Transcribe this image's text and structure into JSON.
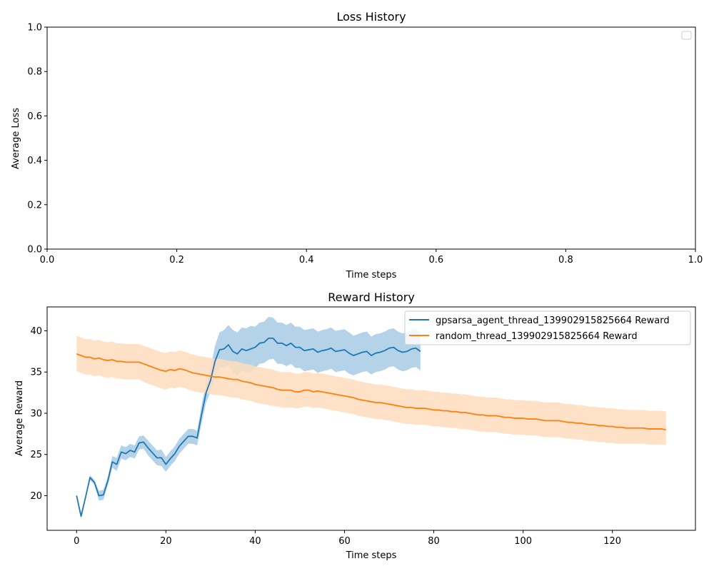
{
  "chart_data": [
    {
      "type": "line",
      "title": "Loss History",
      "xlabel": "Time steps",
      "ylabel": "Average Loss",
      "xlim": [
        0,
        1
      ],
      "ylim": [
        0,
        1
      ],
      "xticks": [
        "0.0",
        "0.2",
        "0.4",
        "0.6",
        "0.8",
        "1.0"
      ],
      "yticks": [
        "0.0",
        "0.2",
        "0.4",
        "0.6",
        "0.8",
        "1.0"
      ],
      "series": [],
      "legend": "upper-right (empty)",
      "grid": false
    },
    {
      "type": "line",
      "title": "Reward History",
      "xlabel": "Time steps",
      "ylabel": "Average Reward",
      "xlim": [
        -6.6,
        138.6
      ],
      "ylim": [
        15.8,
        42.9
      ],
      "xticks": [
        "0",
        "20",
        "40",
        "60",
        "80",
        "100",
        "120"
      ],
      "yticks": [
        "20",
        "25",
        "30",
        "35",
        "40"
      ],
      "legend": "upper-right",
      "grid": false,
      "series": [
        {
          "name": "gpsarsa_agent_thread_139902915825664 Reward",
          "color": "#1f77b4",
          "band_color": "#a8cbe4",
          "x": [
            0,
            1,
            2,
            3,
            4,
            5,
            6,
            7,
            8,
            9,
            10,
            11,
            12,
            13,
            14,
            15,
            16,
            17,
            18,
            19,
            20,
            21,
            22,
            23,
            24,
            25,
            26,
            27,
            28,
            29,
            30,
            31,
            32,
            33,
            34,
            35,
            36,
            37,
            38,
            39,
            40,
            41,
            42,
            43,
            44,
            45,
            46,
            47,
            48,
            49,
            50,
            51,
            52,
            53,
            54,
            55,
            56,
            57,
            58,
            59,
            60,
            61,
            62,
            63,
            64,
            65,
            66,
            67,
            68,
            69,
            70,
            71,
            72,
            73,
            74,
            75,
            76,
            77
          ],
          "y": [
            20.0,
            17.5,
            19.8,
            22.2,
            21.6,
            20.0,
            20.1,
            21.8,
            24.1,
            23.8,
            25.3,
            25.1,
            25.5,
            25.3,
            26.4,
            26.5,
            25.8,
            25.2,
            24.6,
            24.6,
            23.8,
            24.5,
            25.1,
            26.0,
            26.6,
            27.2,
            27.2,
            27.0,
            29.9,
            32.5,
            34.0,
            36.3,
            37.7,
            37.8,
            38.3,
            37.5,
            37.2,
            37.8,
            37.6,
            37.8,
            38.0,
            38.5,
            38.6,
            39.1,
            39.1,
            38.5,
            38.5,
            38.2,
            38.5,
            38.0,
            38.0,
            37.6,
            37.7,
            37.8,
            37.4,
            37.6,
            37.7,
            37.9,
            37.5,
            37.6,
            37.7,
            37.3,
            37.0,
            37.2,
            37.4,
            37.5,
            37.0,
            37.3,
            37.4,
            37.6,
            37.9,
            38.0,
            37.6,
            37.4,
            37.5,
            37.8,
            37.9,
            37.5
          ],
          "lower": [
            19.8,
            17.3,
            19.6,
            21.9,
            21.3,
            19.4,
            19.5,
            21.3,
            23.4,
            23.0,
            24.5,
            24.3,
            24.7,
            24.5,
            25.6,
            25.7,
            24.9,
            24.3,
            23.7,
            23.6,
            22.9,
            23.6,
            24.2,
            25.1,
            25.7,
            26.3,
            26.3,
            26.1,
            28.8,
            31.3,
            32.6,
            34.4,
            35.6,
            35.5,
            35.9,
            34.9,
            34.6,
            35.2,
            34.9,
            35.0,
            35.5,
            36.0,
            36.1,
            36.5,
            36.6,
            36.0,
            36.0,
            35.7,
            36.0,
            35.5,
            35.5,
            35.1,
            35.2,
            35.3,
            34.9,
            35.1,
            35.2,
            35.4,
            35.0,
            35.1,
            35.2,
            34.8,
            34.6,
            34.8,
            35.0,
            35.1,
            34.7,
            35.0,
            35.1,
            35.3,
            35.6,
            35.7,
            35.3,
            35.1,
            35.2,
            35.5,
            35.6,
            35.2
          ],
          "upper": [
            20.2,
            17.7,
            20.0,
            22.5,
            21.9,
            20.6,
            20.7,
            22.3,
            24.8,
            24.6,
            26.1,
            25.9,
            26.3,
            26.1,
            27.2,
            27.3,
            26.7,
            26.1,
            25.5,
            25.6,
            24.7,
            25.4,
            26.0,
            26.9,
            27.5,
            28.1,
            28.1,
            27.9,
            31.0,
            33.7,
            35.4,
            38.2,
            39.8,
            40.1,
            40.7,
            40.1,
            39.8,
            40.4,
            40.3,
            40.6,
            40.5,
            41.0,
            41.1,
            41.7,
            41.6,
            41.0,
            41.0,
            40.7,
            41.0,
            40.5,
            40.5,
            40.1,
            40.2,
            40.3,
            39.9,
            40.1,
            40.2,
            40.4,
            40.0,
            40.1,
            40.2,
            39.8,
            39.4,
            39.6,
            39.8,
            39.9,
            39.3,
            39.6,
            39.7,
            39.9,
            40.2,
            40.3,
            39.9,
            39.7,
            39.8,
            40.1,
            40.2,
            39.8
          ]
        },
        {
          "name": "random_thread_139902915825664 Reward",
          "color": "#ff7f0e",
          "band_color": "#ffdcbd",
          "x": [
            0,
            1,
            2,
            3,
            4,
            5,
            6,
            7,
            8,
            9,
            10,
            11,
            12,
            13,
            14,
            15,
            16,
            17,
            18,
            19,
            20,
            21,
            22,
            23,
            24,
            25,
            26,
            27,
            28,
            29,
            30,
            31,
            32,
            33,
            34,
            35,
            36,
            37,
            38,
            39,
            40,
            41,
            42,
            43,
            44,
            45,
            46,
            47,
            48,
            49,
            50,
            51,
            52,
            53,
            54,
            55,
            56,
            57,
            58,
            59,
            60,
            61,
            62,
            63,
            64,
            65,
            66,
            67,
            68,
            69,
            70,
            71,
            72,
            73,
            74,
            75,
            76,
            77,
            78,
            79,
            80,
            81,
            82,
            83,
            84,
            85,
            86,
            87,
            88,
            89,
            90,
            91,
            92,
            93,
            94,
            95,
            96,
            97,
            98,
            99,
            100,
            101,
            102,
            103,
            104,
            105,
            106,
            107,
            108,
            109,
            110,
            111,
            112,
            113,
            114,
            115,
            116,
            117,
            118,
            119,
            120,
            121,
            122,
            123,
            124,
            125,
            126,
            127,
            128,
            129,
            130,
            131,
            132
          ],
          "y": [
            37.2,
            37.0,
            36.8,
            36.8,
            36.6,
            36.7,
            36.5,
            36.4,
            36.5,
            36.3,
            36.3,
            36.2,
            36.2,
            36.2,
            36.2,
            36.0,
            35.8,
            35.6,
            35.4,
            35.2,
            35.1,
            35.3,
            35.2,
            35.4,
            35.3,
            35.1,
            34.9,
            34.8,
            34.7,
            34.6,
            34.5,
            34.4,
            34.4,
            34.3,
            34.2,
            34.1,
            34.1,
            33.9,
            33.8,
            33.7,
            33.5,
            33.4,
            33.3,
            33.2,
            33.1,
            32.9,
            32.8,
            32.8,
            32.8,
            32.6,
            32.6,
            32.8,
            32.8,
            32.6,
            32.7,
            32.6,
            32.5,
            32.4,
            32.3,
            32.2,
            32.1,
            32.0,
            31.9,
            31.7,
            31.6,
            31.5,
            31.4,
            31.3,
            31.3,
            31.2,
            31.1,
            31.0,
            30.9,
            30.8,
            30.7,
            30.7,
            30.6,
            30.6,
            30.6,
            30.5,
            30.4,
            30.4,
            30.3,
            30.3,
            30.2,
            30.2,
            30.1,
            30.1,
            30.0,
            29.9,
            29.8,
            29.8,
            29.7,
            29.7,
            29.7,
            29.6,
            29.5,
            29.5,
            29.4,
            29.4,
            29.4,
            29.3,
            29.3,
            29.3,
            29.2,
            29.1,
            29.1,
            29.1,
            29.1,
            29.0,
            28.9,
            28.9,
            28.8,
            28.8,
            28.7,
            28.6,
            28.6,
            28.5,
            28.5,
            28.4,
            28.4,
            28.3,
            28.3,
            28.2,
            28.2,
            28.2,
            28.2,
            28.2,
            28.1,
            28.1,
            28.1,
            28.1,
            28.0
          ],
          "lower": [
            35.1,
            34.9,
            34.7,
            34.7,
            34.5,
            34.6,
            34.4,
            34.3,
            34.4,
            34.2,
            34.2,
            34.1,
            34.1,
            34.1,
            34.1,
            33.8,
            33.6,
            33.4,
            33.2,
            33.0,
            32.9,
            33.1,
            33.0,
            33.2,
            33.1,
            32.9,
            32.7,
            32.6,
            32.5,
            32.4,
            32.3,
            32.2,
            32.2,
            32.1,
            32.0,
            31.9,
            31.9,
            31.7,
            31.6,
            31.5,
            31.3,
            31.2,
            31.1,
            31.0,
            30.9,
            30.8,
            30.7,
            30.7,
            30.7,
            30.6,
            30.6,
            30.8,
            30.8,
            30.6,
            30.7,
            30.6,
            30.5,
            30.4,
            30.3,
            30.2,
            30.1,
            30.0,
            29.9,
            29.7,
            29.6,
            29.5,
            29.4,
            29.3,
            29.3,
            29.2,
            29.1,
            29.0,
            28.9,
            28.8,
            28.7,
            28.7,
            28.6,
            28.6,
            28.6,
            28.5,
            28.4,
            28.4,
            28.3,
            28.3,
            28.2,
            28.2,
            28.1,
            28.1,
            28.0,
            27.9,
            27.8,
            27.8,
            27.7,
            27.7,
            27.7,
            27.6,
            27.5,
            27.5,
            27.4,
            27.4,
            27.4,
            27.3,
            27.3,
            27.3,
            27.2,
            27.1,
            27.1,
            27.1,
            27.1,
            27.0,
            26.9,
            26.9,
            26.8,
            26.8,
            26.7,
            26.6,
            26.6,
            26.5,
            26.5,
            26.4,
            26.4,
            26.3,
            26.3,
            26.3,
            26.3,
            26.3,
            26.3,
            26.3,
            26.2,
            26.2,
            26.2,
            26.2,
            26.2
          ],
          "upper": [
            39.4,
            39.2,
            39.0,
            39.0,
            38.8,
            38.9,
            38.7,
            38.6,
            38.7,
            38.5,
            38.5,
            38.4,
            38.4,
            38.4,
            38.4,
            38.2,
            38.0,
            37.8,
            37.6,
            37.4,
            37.3,
            37.5,
            37.4,
            37.6,
            37.5,
            37.3,
            37.1,
            37.0,
            36.9,
            36.8,
            36.7,
            36.6,
            36.6,
            36.5,
            36.4,
            36.3,
            36.3,
            36.1,
            36.0,
            35.9,
            35.7,
            35.6,
            35.5,
            35.4,
            35.3,
            35.1,
            35.0,
            35.0,
            35.0,
            34.8,
            34.8,
            35.0,
            35.0,
            34.8,
            34.9,
            34.8,
            34.7,
            34.6,
            34.5,
            34.4,
            34.3,
            34.2,
            34.1,
            33.9,
            33.8,
            33.7,
            33.6,
            33.5,
            33.5,
            33.4,
            33.3,
            33.2,
            33.1,
            33.0,
            32.9,
            32.9,
            32.8,
            32.8,
            32.8,
            32.7,
            32.6,
            32.6,
            32.5,
            32.5,
            32.4,
            32.4,
            32.3,
            32.3,
            32.2,
            32.1,
            32.0,
            32.0,
            31.9,
            31.9,
            31.9,
            31.8,
            31.7,
            31.7,
            31.6,
            31.6,
            31.6,
            31.5,
            31.5,
            31.5,
            31.4,
            31.3,
            31.3,
            31.3,
            31.3,
            31.2,
            31.1,
            31.1,
            31.0,
            31.0,
            30.9,
            30.8,
            30.8,
            30.7,
            30.7,
            30.6,
            30.6,
            30.5,
            30.5,
            30.4,
            30.4,
            30.4,
            30.4,
            30.4,
            30.3,
            30.3,
            30.3,
            30.3,
            30.2
          ]
        }
      ]
    }
  ]
}
